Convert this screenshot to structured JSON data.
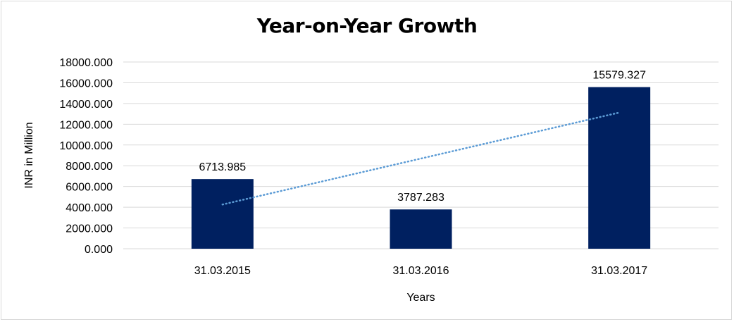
{
  "chart_data": {
    "type": "bar",
    "title": "Year-on-Year Growth",
    "xlabel": "Years",
    "ylabel": "INR in Million",
    "categories": [
      "31.03.2015",
      "31.03.2016",
      "31.03.2017"
    ],
    "values": [
      6713.985,
      3787.283,
      15579.327
    ],
    "value_labels": [
      "6713.985",
      "3787.283",
      "15579.327"
    ],
    "ylim": [
      0,
      18000
    ],
    "yticks": [
      0,
      2000,
      4000,
      6000,
      8000,
      10000,
      12000,
      14000,
      16000,
      18000
    ],
    "ytick_labels": [
      "0.000",
      "2000.000",
      "4000.000",
      "6000.000",
      "8000.000",
      "10000.000",
      "12000.000",
      "14000.000",
      "16000.000",
      "18000.000"
    ],
    "grid": true,
    "trendline": {
      "type": "linear",
      "style": "dotted",
      "color": "#5b9bd5"
    },
    "bar_color": "#002060",
    "legend": "none"
  }
}
